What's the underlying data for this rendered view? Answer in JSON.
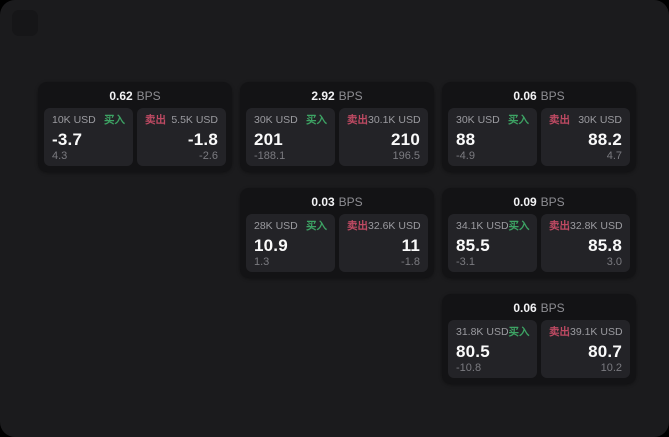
{
  "labels": {
    "buy": "买入",
    "sell": "卖出",
    "bps_unit": "BPS"
  },
  "colors": {
    "buy_green": "#3da364",
    "sell_red": "#bf4a63",
    "window_bg": "#1b1b1d",
    "card_bg": "#131315",
    "panel_bg": "#232327"
  },
  "cards": [
    {
      "bps": "0.62",
      "buy": {
        "amount": "10K USD",
        "price": "-3.7",
        "delta": "4.3"
      },
      "sell": {
        "amount": "5.5K USD",
        "price": "-1.8",
        "delta": "-2.6"
      }
    },
    {
      "bps": "2.92",
      "buy": {
        "amount": "30K USD",
        "price": "201",
        "delta": "-188.1"
      },
      "sell": {
        "amount": "30.1K USD",
        "price": "210",
        "delta": "196.5"
      }
    },
    {
      "bps": "0.06",
      "buy": {
        "amount": "30K USD",
        "price": "88",
        "delta": "-4.9"
      },
      "sell": {
        "amount": "30K USD",
        "price": "88.2",
        "delta": "4.7"
      }
    },
    {
      "bps": "0.03",
      "buy": {
        "amount": "28K USD",
        "price": "10.9",
        "delta": "1.3"
      },
      "sell": {
        "amount": "32.6K USD",
        "price": "11",
        "delta": "-1.8"
      }
    },
    {
      "bps": "0.09",
      "buy": {
        "amount": "34.1K USD",
        "price": "85.5",
        "delta": "-3.1"
      },
      "sell": {
        "amount": "32.8K USD",
        "price": "85.8",
        "delta": "3.0"
      }
    },
    {
      "bps": "0.06",
      "buy": {
        "amount": "31.8K USD",
        "price": "80.5",
        "delta": "-10.8"
      },
      "sell": {
        "amount": "39.1K USD",
        "price": "80.7",
        "delta": "10.2"
      }
    }
  ]
}
